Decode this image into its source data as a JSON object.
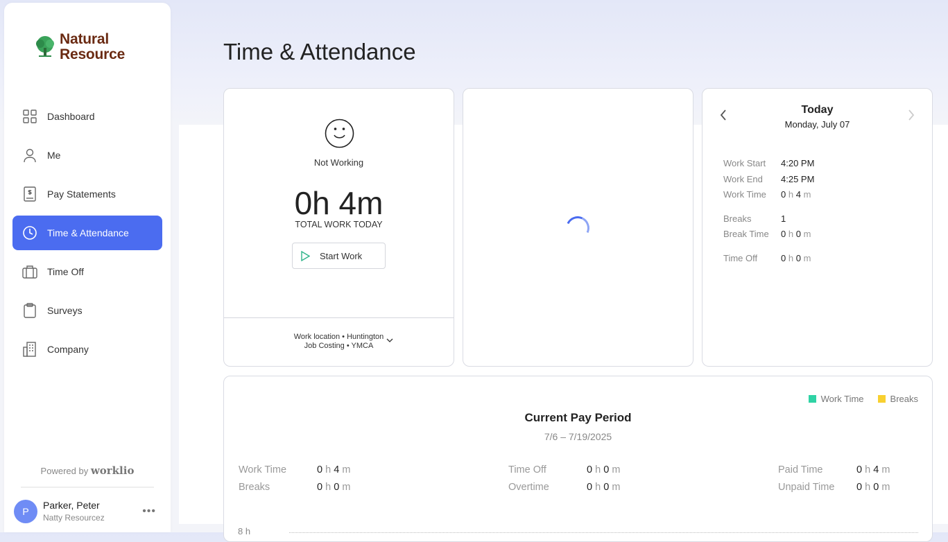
{
  "brand": {
    "logo_line1": "Natural",
    "logo_line2": "Resource",
    "powered_by": "Powered by",
    "powered_brand": "worklio"
  },
  "sidebar": {
    "items": [
      {
        "label": "Dashboard",
        "icon": "grid-icon"
      },
      {
        "label": "Me",
        "icon": "person-icon"
      },
      {
        "label": "Pay Statements",
        "icon": "dollar-document-icon"
      },
      {
        "label": "Time & Attendance",
        "icon": "clock-icon",
        "active": true
      },
      {
        "label": "Time Off",
        "icon": "suitcase-icon"
      },
      {
        "label": "Surveys",
        "icon": "clipboard-icon"
      },
      {
        "label": "Company",
        "icon": "building-icon"
      }
    ]
  },
  "user": {
    "initial": "P",
    "name": "Parker, Peter",
    "org": "Natty Resourcez"
  },
  "page": {
    "title": "Time & Attendance"
  },
  "clock": {
    "status": "Not Working",
    "total": "0h 4m",
    "total_label": "TOTAL WORK TODAY",
    "start_label": "Start Work",
    "location": "Work location • Huntington",
    "job": "Job Costing • YMCA"
  },
  "today": {
    "title": "Today",
    "date": "Monday, July 07",
    "rows": [
      {
        "label": "Work Start",
        "value": "4:20 PM"
      },
      {
        "label": "Work End",
        "value": "4:25 PM"
      },
      {
        "label": "Work Time",
        "h": "0",
        "m": "4"
      },
      {
        "label": "Breaks",
        "value": "1"
      },
      {
        "label": "Break Time",
        "h": "0",
        "m": "0"
      },
      {
        "label": "Time Off",
        "h": "0",
        "m": "0"
      }
    ]
  },
  "pay_period": {
    "title": "Current Pay Period",
    "dates": "7/6 – 7/19/2025",
    "legend": [
      {
        "label": "Work Time",
        "color": "#2fd3a5"
      },
      {
        "label": "Breaks",
        "color": "#f8d030"
      }
    ],
    "stats": [
      {
        "label": "Work Time",
        "h": "0",
        "m": "4"
      },
      {
        "label": "Breaks",
        "h": "0",
        "m": "0"
      },
      {
        "label": "Time Off",
        "h": "0",
        "m": "0"
      },
      {
        "label": "Overtime",
        "h": "0",
        "m": "0"
      },
      {
        "label": "Paid Time",
        "h": "0",
        "m": "4"
      },
      {
        "label": "Unpaid Time",
        "h": "0",
        "m": "0"
      }
    ],
    "axis_top": "8 h"
  },
  "units": {
    "h": "h",
    "m": "m"
  },
  "colors": {
    "accent": "#4b6cf0",
    "logo": "#6a2a12"
  }
}
